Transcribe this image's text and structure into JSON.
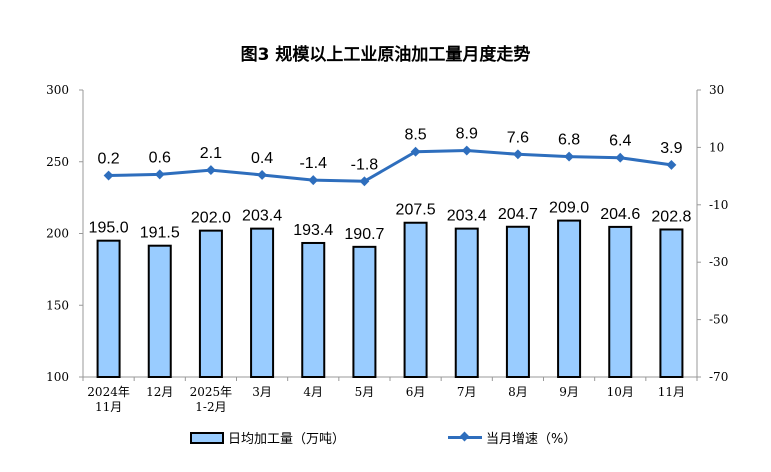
{
  "chart_data": {
    "type": "bar+line",
    "title": "图3  规模以上工业原油加工量月度走势",
    "categories": [
      [
        "2024年",
        "11月"
      ],
      [
        "12月"
      ],
      [
        "2025年",
        "1-2月"
      ],
      [
        "3月"
      ],
      [
        "4月"
      ],
      [
        "5月"
      ],
      [
        "6月"
      ],
      [
        "7月"
      ],
      [
        "8月"
      ],
      [
        "9月"
      ],
      [
        "10月"
      ],
      [
        "11月"
      ]
    ],
    "series": [
      {
        "name": "日均加工量（万吨）",
        "type": "bar",
        "axis": "left",
        "color": "#99CCFF",
        "values": [
          195.0,
          191.5,
          202.0,
          203.4,
          193.4,
          190.7,
          207.5,
          203.4,
          204.7,
          209.0,
          204.6,
          202.8
        ]
      },
      {
        "name": "当月增速（%）",
        "type": "line",
        "axis": "right",
        "color": "#2E6EBD",
        "values": [
          0.2,
          0.6,
          2.1,
          0.4,
          -1.4,
          -1.8,
          8.5,
          8.9,
          7.6,
          6.8,
          6.4,
          3.9
        ]
      }
    ],
    "y_left": {
      "range": [
        100,
        300
      ],
      "ticks": [
        100,
        150,
        200,
        250,
        300
      ]
    },
    "y_right": {
      "range": [
        -70,
        30
      ],
      "ticks": [
        -70,
        -50,
        -30,
        -10,
        10,
        30
      ]
    },
    "grid": false,
    "legend_position": "bottom"
  }
}
